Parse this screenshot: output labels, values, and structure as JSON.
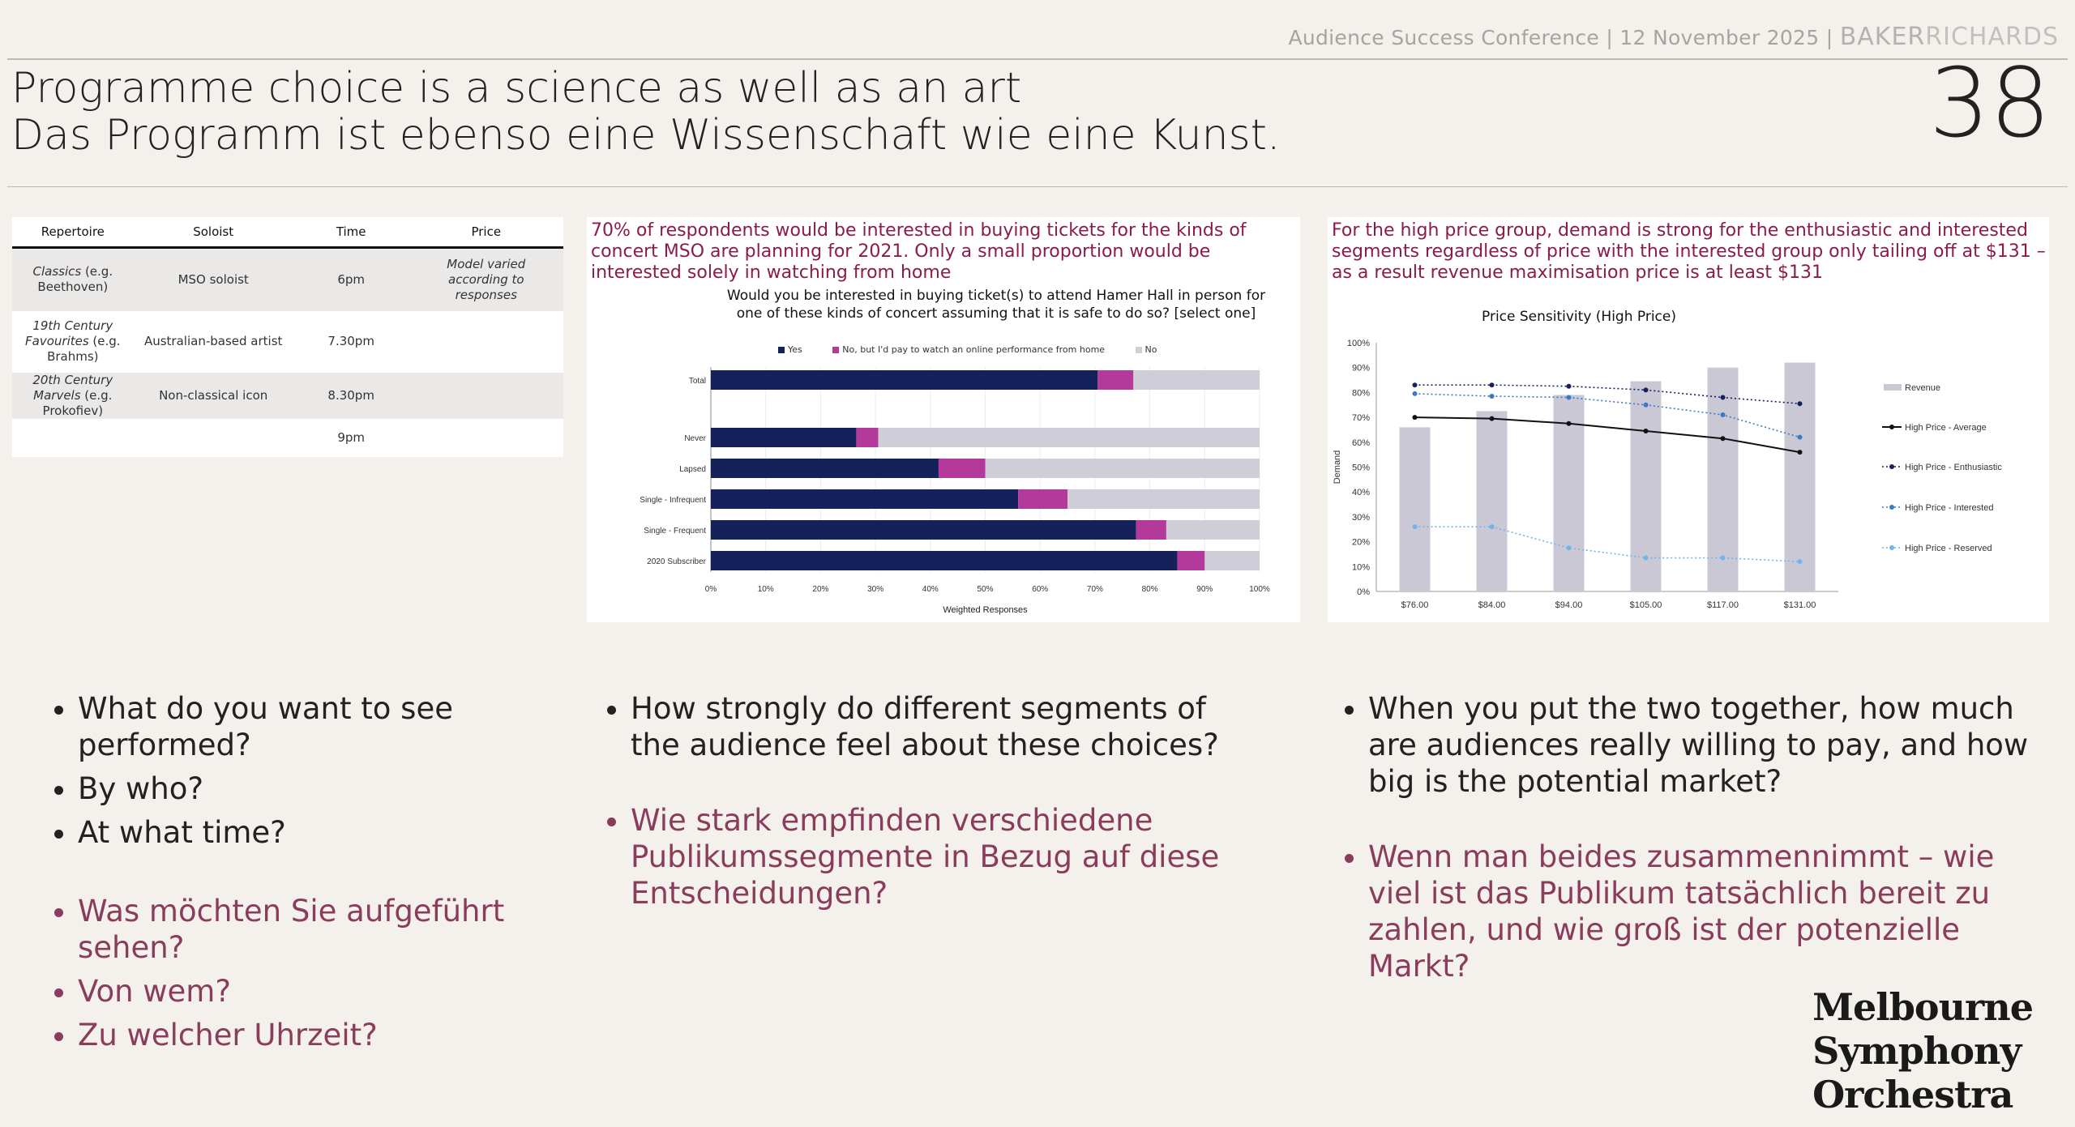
{
  "header": {
    "event": "Audience Success Conference | 12 November 2025",
    "separator": "|",
    "brand_a": "BAKER",
    "brand_b": "RICHARDS"
  },
  "title": {
    "line1": "Programme choice is a science as well as an art",
    "line2": "Das Programm ist ebenso eine Wissenschaft wie eine Kunst."
  },
  "slide_number": "38",
  "table": {
    "headers": [
      "Repertoire",
      "Soloist",
      "Time",
      "Price"
    ],
    "rows": [
      {
        "rep_it": "Classics",
        "rep_rest": " (e.g. Beethoven)",
        "soloist": "MSO soloist",
        "time": "6pm",
        "price": "Model varied according to responses"
      },
      {
        "rep_it": "19th Century Favourites",
        "rep_rest": " (e.g. Brahms)",
        "soloist": "Australian-based artist",
        "time": "7.30pm",
        "price": ""
      },
      {
        "rep_it": "20th Century Marvels",
        "rep_rest": " (e.g. Prokofiev)",
        "soloist": "Non-classical icon",
        "time": "8.30pm",
        "price": ""
      },
      {
        "rep_it": "",
        "rep_rest": "",
        "soloist": "",
        "time": "9pm",
        "price": ""
      }
    ]
  },
  "panel2": {
    "caption": "70% of respondents would be interested in buying tickets for the kinds of concert MSO are planning for 2021.  Only a small proportion would be interested solely in watching from home",
    "chart_title": "Would you be interested in buying ticket(s) to attend Hamer Hall in person for one of these kinds of concert assuming that it is safe to do so? [select one]"
  },
  "panel3": {
    "caption": "For the high price group, demand is strong for the enthusiastic and interested segments regardless of price with the interested group only tailing off at $131 – as a result revenue maximisation price is at least $131"
  },
  "chart_data": [
    {
      "type": "bar",
      "orientation": "horizontal",
      "stacked": true,
      "title": "Would you be interested in buying ticket(s) to attend Hamer Hall in person for one of these kinds of concert assuming that it is safe to do so? [select one]",
      "xlabel": "Weighted Responses",
      "ylabel": "",
      "xlim": [
        0,
        100
      ],
      "x_ticks": [
        "0%",
        "10%",
        "20%",
        "30%",
        "40%",
        "50%",
        "60%",
        "70%",
        "80%",
        "90%",
        "100%"
      ],
      "categories": [
        "Total",
        "Never",
        "Lapsed",
        "Single - Infrequent",
        "Single - Frequent",
        "2020 Subscriber"
      ],
      "series": [
        {
          "name": "Yes",
          "color": "#14215a",
          "values": [
            70.5,
            26.5,
            41.5,
            56,
            77.5,
            85
          ]
        },
        {
          "name": "No, but I'd pay to watch  an online performance from home",
          "color": "#b33a9a",
          "values": [
            6.5,
            4,
            8.5,
            9,
            5.5,
            5
          ]
        },
        {
          "name": "No",
          "color": "#cfcdd8",
          "values": [
            23,
            69.5,
            50,
            35,
            17,
            10
          ]
        }
      ],
      "legend": "top"
    },
    {
      "type": "bar+line",
      "title": "Price Sensitivity (High Price)",
      "xlabel": "",
      "ylabel": "Demand",
      "ylim": [
        0,
        100
      ],
      "y_ticks": [
        "0%",
        "10%",
        "20%",
        "30%",
        "40%",
        "50%",
        "60%",
        "70%",
        "80%",
        "90%",
        "100%"
      ],
      "categories": [
        "$76.00",
        "$84.00",
        "$94.00",
        "$105.00",
        "$117.00",
        "$131.00"
      ],
      "series": [
        {
          "name": "Revenue",
          "kind": "bar",
          "color": "#cbc8d6",
          "values": [
            66,
            72.5,
            79,
            84.5,
            90,
            92
          ]
        },
        {
          "name": "High Price - Average",
          "kind": "line",
          "style": "solid",
          "color": "#111111",
          "values": [
            70,
            69.5,
            67.5,
            64.5,
            61.5,
            56
          ]
        },
        {
          "name": "High Price - Enthusiastic",
          "kind": "line",
          "style": "dotted",
          "color": "#14215a",
          "values": [
            83,
            83,
            82.5,
            81,
            78,
            75.5
          ]
        },
        {
          "name": "High Price - Interested",
          "kind": "line",
          "style": "dotted",
          "color": "#3a78c9",
          "values": [
            79.5,
            78.5,
            78,
            75,
            71,
            62
          ]
        },
        {
          "name": "High Price - Reserved",
          "kind": "line",
          "style": "dotted",
          "color": "#6fb4ea",
          "values": [
            26,
            26,
            17.5,
            13.5,
            13.5,
            12
          ]
        }
      ],
      "legend": "right"
    }
  ],
  "bullets": {
    "col1": {
      "en": [
        "What do you want to see performed?",
        "By who?",
        "At what time?"
      ],
      "de": [
        "Was möchten Sie aufgeführt sehen?",
        "Von wem?",
        "Zu welcher Uhrzeit?"
      ]
    },
    "col2": {
      "en": [
        "How strongly do different segments of the audience feel about these choices?"
      ],
      "de": [
        "Wie stark empfinden verschiedene Publikumssegmente in Bezug auf diese Entscheidungen?"
      ]
    },
    "col3": {
      "en": [
        "When you put the two together, how much are audiences really willing to pay, and how big is the potential market?"
      ],
      "de": [
        "Wenn man beides zusammennimmt – wie viel ist das Publikum tatsächlich bereit zu zahlen, und wie groß ist der potenzielle Markt?"
      ]
    }
  },
  "logo": {
    "line1": "Melbourne",
    "line2": "Symphony",
    "line3": "Orchestra"
  }
}
